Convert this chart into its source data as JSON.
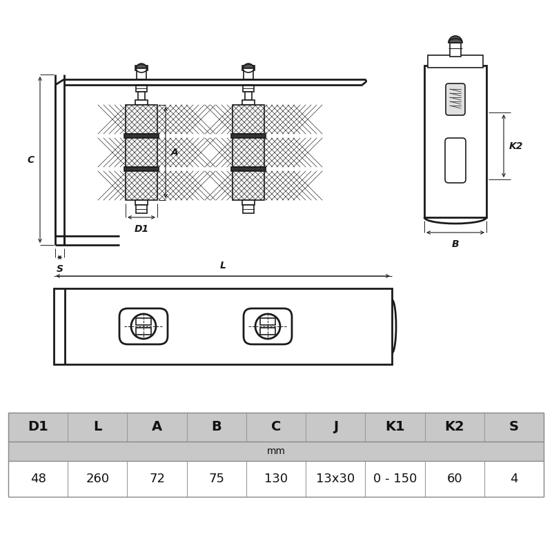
{
  "bg_color": "#ffffff",
  "line_color": "#1a1a1a",
  "table_bg_header": "#c8c8c8",
  "table_bg_mm": "#c8c8c8",
  "table_bg_values": "#ffffff",
  "table_headers": [
    "D1",
    "L",
    "A",
    "B",
    "C",
    "J",
    "K1",
    "K2",
    "S"
  ],
  "table_values": [
    "48",
    "260",
    "72",
    "75",
    "130",
    "13x30",
    "0 - 150",
    "60",
    "4"
  ],
  "table_mm_label": "mm"
}
